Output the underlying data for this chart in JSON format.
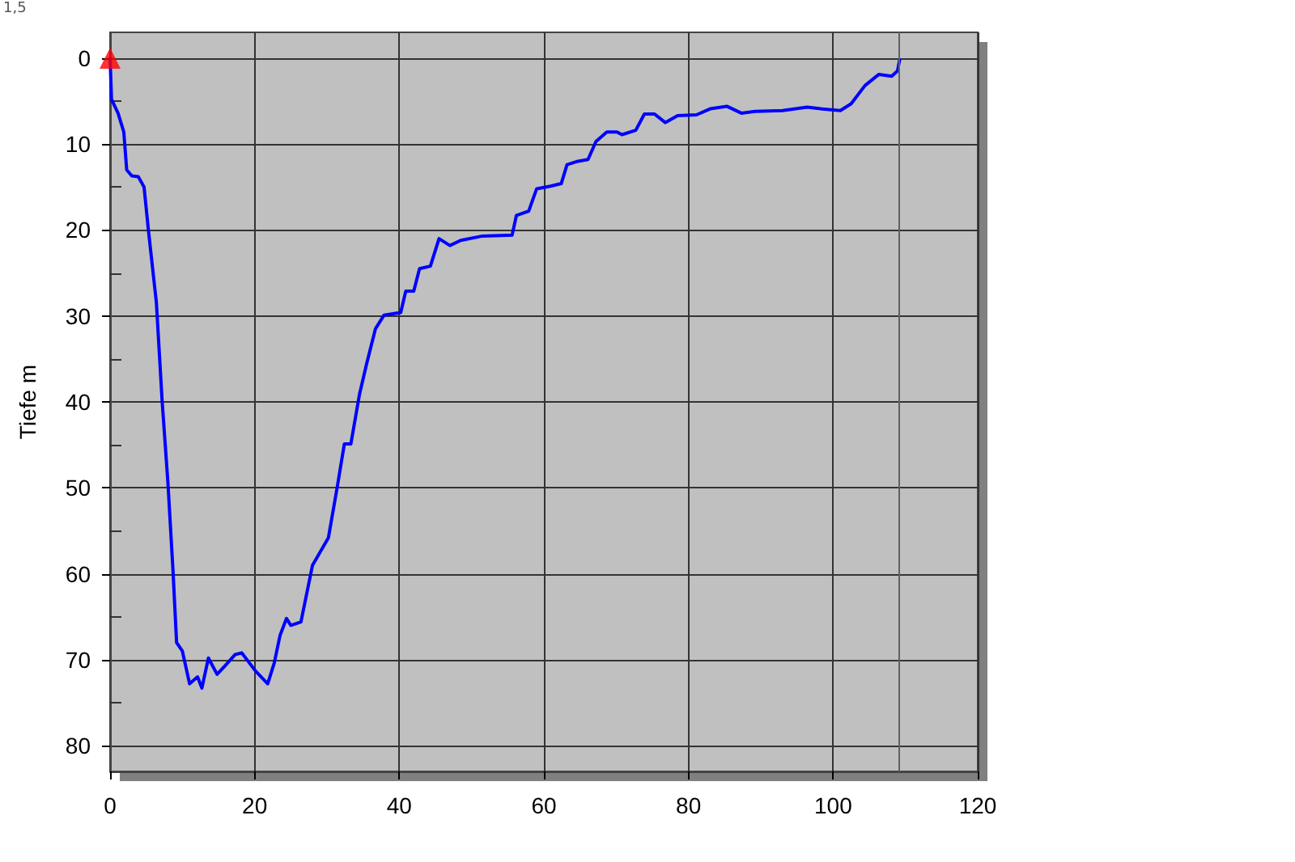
{
  "chart_data": {
    "type": "line",
    "ylabel": "Tiefe m",
    "annotations": [
      "1,5"
    ],
    "xlim": [
      0,
      120
    ],
    "xticks": [
      0,
      20,
      40,
      60,
      80,
      100,
      120
    ],
    "ylim": [
      83,
      -3
    ],
    "yticks": [
      0,
      {
        "value": 5,
        "label": null
      },
      10,
      {
        "value": 15,
        "label": null
      },
      20,
      {
        "value": 25,
        "label": null
      },
      30,
      {
        "value": 35,
        "label": null
      },
      40,
      {
        "value": 45,
        "label": null
      },
      50,
      {
        "value": 55,
        "label": null
      },
      60,
      {
        "value": 65,
        "label": null
      },
      70,
      {
        "value": 75,
        "label": null
      },
      80
    ],
    "grid": true,
    "ref_lines": [
      {
        "axis": "x",
        "value": 109,
        "label": null,
        "color": "#606060"
      }
    ],
    "series": [
      {
        "color": "#0000ff",
        "marker": "none",
        "line_style": "solid",
        "x": [
          0,
          0.2,
          1.1,
          1.9,
          2.3,
          3,
          3.9,
          4.7,
          5.3,
          6.4,
          7.2,
          8,
          8.7,
          9.2,
          10,
          11,
          12.1,
          12.7,
          13.6,
          14.8,
          15.9,
          17.3,
          18.2,
          20.1,
          21.8,
          22.7,
          23.5,
          24.4,
          25,
          26.4,
          28,
          30.2,
          31.4,
          32.4,
          33.3,
          34.5,
          35.5,
          36.7,
          37.9,
          40.2,
          40.9,
          42,
          42.8,
          44.3,
          45.5,
          47,
          48.5,
          51.5,
          55.6,
          56.2,
          57.9,
          59,
          60.9,
          62.4,
          63.2,
          64.7,
          66.1,
          67.2,
          68.7,
          70.1,
          70.8,
          72.7,
          73.9,
          75.3,
          76.8,
          78.5,
          81.1,
          83,
          85.3,
          87.3,
          89.2,
          93,
          96.4,
          98.3,
          101,
          102.5,
          104.4,
          106.3,
          108.1,
          108.9,
          109.2
        ],
        "values": [
          0,
          4.8,
          6.4,
          8.6,
          13,
          13.7,
          13.8,
          15,
          20,
          28.4,
          39.9,
          49.4,
          59.6,
          68,
          69,
          72.8,
          72,
          73.3,
          69.8,
          71.7,
          70.7,
          69.4,
          69.2,
          71.3,
          72.8,
          70.4,
          67.2,
          65.2,
          66,
          65.6,
          59,
          55.8,
          50,
          44.9,
          44.9,
          39.1,
          35.5,
          31.5,
          29.9,
          29.6,
          27.1,
          27.1,
          24.5,
          24.2,
          21,
          21.8,
          21.2,
          20.7,
          20.6,
          18.3,
          17.8,
          15.2,
          14.9,
          14.6,
          12.4,
          12,
          11.8,
          9.7,
          8.6,
          8.6,
          8.9,
          8.4,
          6.5,
          6.5,
          7.5,
          6.7,
          6.6,
          5.9,
          5.6,
          6.4,
          6.2,
          6.1,
          5.7,
          5.9,
          6.1,
          5.3,
          3.2,
          1.9,
          2.1,
          1.5,
          0.2
        ]
      },
      {
        "type": "scatter",
        "color": "#ff0000",
        "marker": "triangle",
        "x": [
          0
        ],
        "values": [
          0
        ]
      }
    ]
  }
}
